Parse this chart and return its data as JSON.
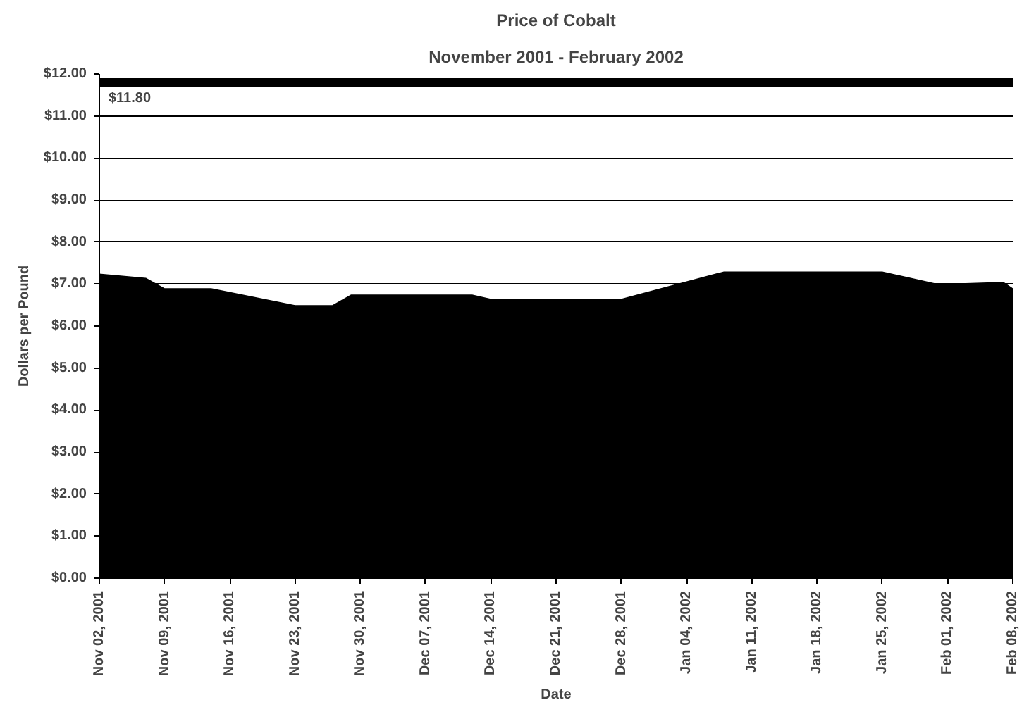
{
  "chart_data": {
    "type": "area",
    "title": "Price of Cobalt",
    "subtitle": "November 2001 - February 2002",
    "xlabel": "Date",
    "ylabel": "Dollars per Pound",
    "x": [
      "2001-11-02",
      "2001-11-07",
      "2001-11-09",
      "2001-11-14",
      "2001-11-23",
      "2001-11-27",
      "2001-11-29",
      "2001-12-12",
      "2001-12-14",
      "2001-12-28",
      "2002-01-08",
      "2002-01-25",
      "2002-01-31",
      "2002-02-07",
      "2002-02-08"
    ],
    "series": [
      {
        "color": "#000000",
        "values": [
          7.25,
          7.15,
          6.9,
          6.9,
          6.5,
          6.5,
          6.75,
          6.75,
          6.65,
          6.65,
          7.3,
          7.3,
          7.0,
          7.05,
          6.9
        ]
      }
    ],
    "xlim": [
      "2001-11-02",
      "2002-02-08"
    ],
    "xticks": [
      {
        "value": "2001-11-02",
        "label": "Nov 02, 2001"
      },
      {
        "value": "2001-11-09",
        "label": "Nov 09, 2001"
      },
      {
        "value": "2001-11-16",
        "label": "Nov 16, 2001"
      },
      {
        "value": "2001-11-23",
        "label": "Nov 23, 2001"
      },
      {
        "value": "2001-11-30",
        "label": "Nov 30, 2001"
      },
      {
        "value": "2001-12-07",
        "label": "Dec 07, 2001"
      },
      {
        "value": "2001-12-14",
        "label": "Dec 14, 2001"
      },
      {
        "value": "2001-12-21",
        "label": "Dec 21, 2001"
      },
      {
        "value": "2001-12-28",
        "label": "Dec 28, 2001"
      },
      {
        "value": "2002-01-04",
        "label": "Jan 04, 2002"
      },
      {
        "value": "2002-01-11",
        "label": "Jan 11, 2002"
      },
      {
        "value": "2002-01-18",
        "label": "Jan 18, 2002"
      },
      {
        "value": "2002-01-25",
        "label": "Jan 25, 2002"
      },
      {
        "value": "2002-02-01",
        "label": "Feb 01, 2002"
      },
      {
        "value": "2002-02-08",
        "label": "Feb 08, 2002"
      }
    ],
    "ylim": [
      0,
      12
    ],
    "yticks": [
      {
        "value": 0,
        "label": "$0.00"
      },
      {
        "value": 1,
        "label": "$1.00"
      },
      {
        "value": 2,
        "label": "$2.00"
      },
      {
        "value": 3,
        "label": "$3.00"
      },
      {
        "value": 4,
        "label": "$4.00"
      },
      {
        "value": 5,
        "label": "$5.00"
      },
      {
        "value": 6,
        "label": "$6.00"
      },
      {
        "value": 7,
        "label": "$7.00"
      },
      {
        "value": 8,
        "label": "$8.00"
      },
      {
        "value": 9,
        "label": "$9.00"
      },
      {
        "value": 10,
        "label": "$10.00"
      },
      {
        "value": 11,
        "label": "$11.00"
      },
      {
        "value": 12,
        "label": "$12.00"
      }
    ],
    "ref_lines": [
      {
        "axis": "y",
        "value": 11.8,
        "label": "$11.80",
        "color": "#000000",
        "line_style": "solid"
      }
    ],
    "grid": "y"
  }
}
